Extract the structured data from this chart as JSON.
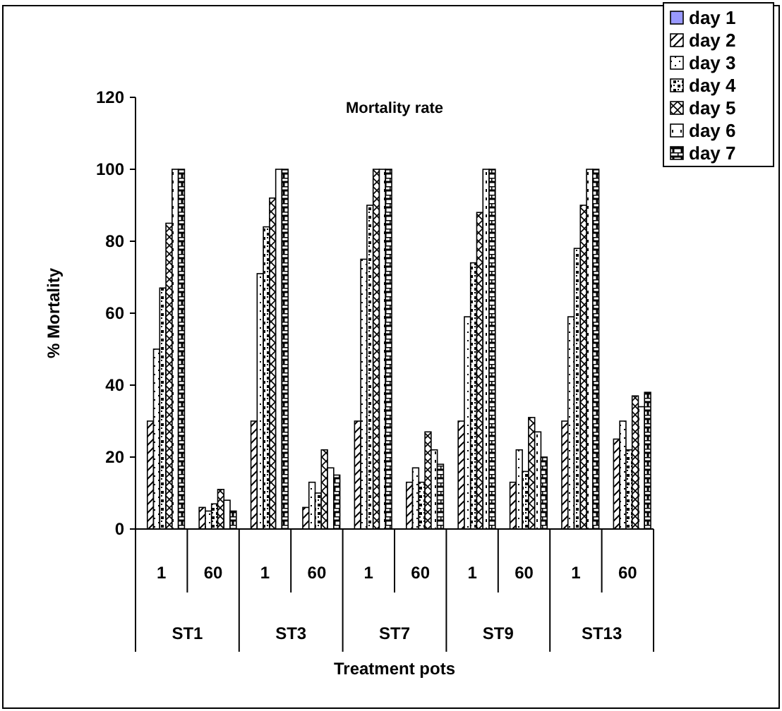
{
  "chart_data": {
    "type": "bar",
    "title": "Mortality rate",
    "xlabel": "Treatment pots",
    "ylabel": "% Mortality",
    "categories": [
      "1",
      "60",
      "1",
      "60",
      "1",
      "60",
      "1",
      "60",
      "1",
      "60"
    ],
    "annotations": [
      "ST1",
      "ST3",
      "ST7",
      "ST9",
      "ST13"
    ],
    "series": [
      {
        "name": "day 1",
        "color": "#9999ff",
        "values": [
          0,
          0,
          0,
          0,
          0,
          0,
          0,
          0,
          0,
          0
        ]
      },
      {
        "name": "day 2",
        "color": "#000000",
        "values": [
          30,
          6,
          30,
          6,
          30,
          13,
          30,
          13,
          30,
          25
        ]
      },
      {
        "name": "day 3",
        "color": "#000000",
        "values": [
          50,
          5,
          71,
          13,
          75,
          17,
          59,
          22,
          59,
          30
        ]
      },
      {
        "name": "day 4",
        "color": "#000000",
        "values": [
          67,
          7,
          84,
          10,
          90,
          13,
          74,
          16,
          78,
          22
        ]
      },
      {
        "name": "day 5",
        "color": "#000000",
        "values": [
          85,
          11,
          92,
          22,
          100,
          27,
          88,
          31,
          90,
          37
        ]
      },
      {
        "name": "day 6",
        "color": "#000000",
        "values": [
          100,
          8,
          100,
          17,
          100,
          22,
          100,
          27,
          100,
          34
        ]
      },
      {
        "name": "day 7",
        "color": "#000000",
        "values": [
          100,
          5,
          100,
          15,
          100,
          18,
          100,
          20,
          100,
          38
        ]
      }
    ],
    "ylim": [
      0,
      120
    ],
    "yticks": [
      0,
      20,
      40,
      60,
      80,
      100,
      120
    ],
    "grid": false,
    "legend": "top right"
  }
}
